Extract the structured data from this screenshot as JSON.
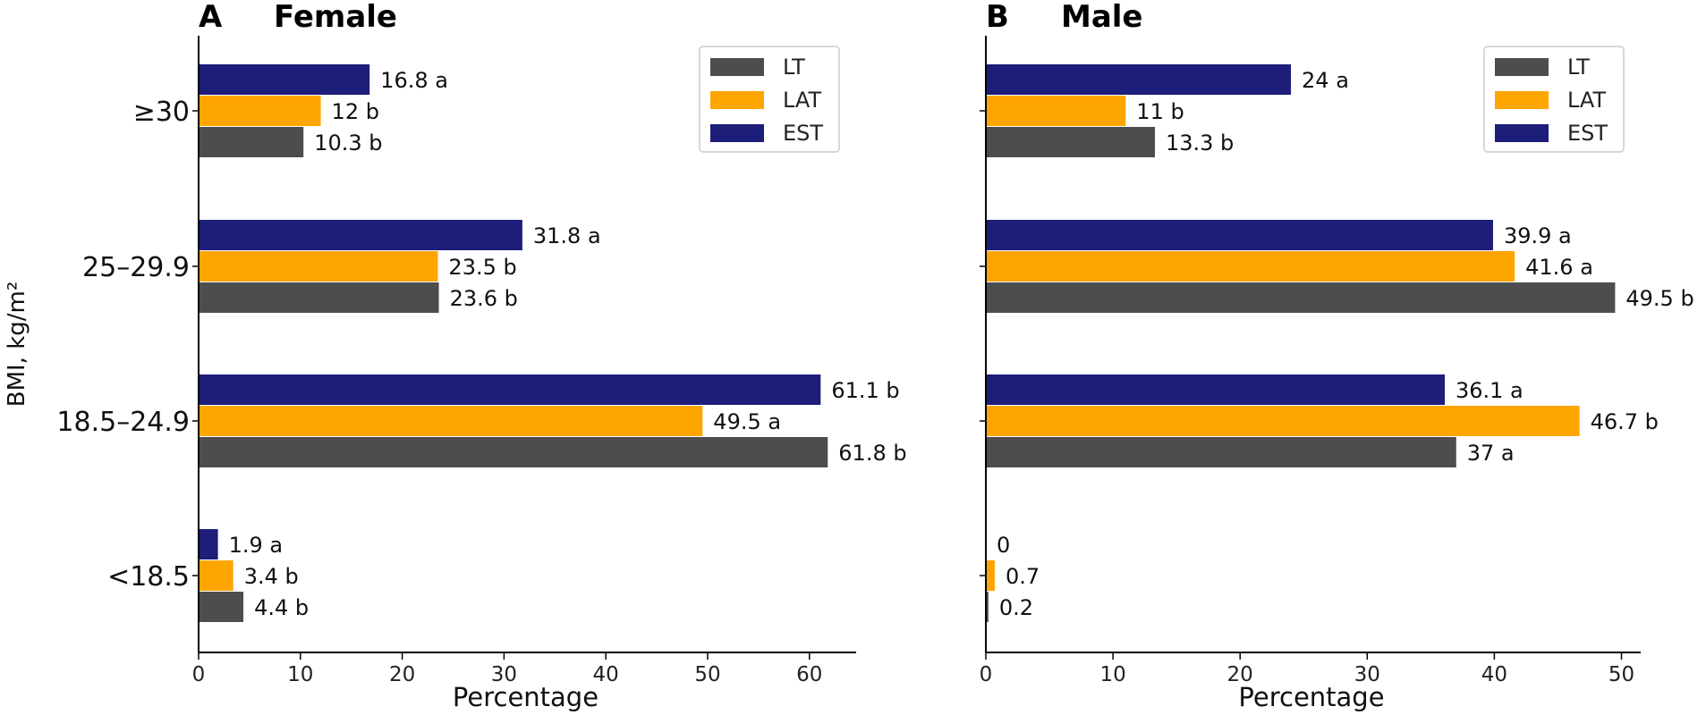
{
  "ylabel": "BMI, kg/m²",
  "colors": {
    "LT": "#4d4d4d",
    "LAT": "#ffa500",
    "EST": "#1d1d7a"
  },
  "chart_data": [
    {
      "type": "bar",
      "orientation": "horizontal",
      "panel_letter": "A",
      "title": "Female",
      "xlabel": "Percentage",
      "ylabel": "BMI, kg/m²",
      "categories": [
        "<18.5",
        "18.5–24.9",
        "25–29.9",
        "≥30"
      ],
      "xlim": [
        0,
        65
      ],
      "xticks": [
        0,
        10,
        20,
        30,
        40,
        50,
        60
      ],
      "legend_position": "top-right",
      "legend": [
        "LT",
        "LAT",
        "EST"
      ],
      "series": [
        {
          "name": "LT",
          "values": [
            4.4,
            61.8,
            23.6,
            10.3
          ],
          "labels": [
            "4.4 b",
            "61.8 b",
            "23.6 b",
            "10.3 b"
          ]
        },
        {
          "name": "LAT",
          "values": [
            3.4,
            49.5,
            23.5,
            12
          ],
          "labels": [
            "3.4 b",
            "49.5 a",
            "23.5 b",
            "12 b"
          ]
        },
        {
          "name": "EST",
          "values": [
            1.9,
            61.1,
            31.8,
            16.8
          ],
          "labels": [
            "1.9 a",
            "61.1 b",
            "31.8 a",
            "16.8 a"
          ]
        }
      ]
    },
    {
      "type": "bar",
      "orientation": "horizontal",
      "panel_letter": "B",
      "title": "Male",
      "xlabel": "Percentage",
      "ylabel": "",
      "categories": [
        "<18.5",
        "18.5–24.9",
        "25–29.9",
        "≥30"
      ],
      "xlim": [
        0,
        52
      ],
      "xticks": [
        0,
        10,
        20,
        30,
        40,
        50
      ],
      "legend_position": "top-right",
      "legend": [
        "LT",
        "LAT",
        "EST"
      ],
      "series": [
        {
          "name": "LT",
          "values": [
            0.2,
            37,
            49.5,
            13.3
          ],
          "labels": [
            "0.2",
            "37 a",
            "49.5 b",
            "13.3 b"
          ]
        },
        {
          "name": "LAT",
          "values": [
            0.7,
            46.7,
            41.6,
            11
          ],
          "labels": [
            "0.7",
            "46.7 b",
            "41.6 a",
            "11 b"
          ]
        },
        {
          "name": "EST",
          "values": [
            0,
            36.1,
            39.9,
            24
          ],
          "labels": [
            "0",
            "36.1 a",
            "39.9 a",
            "24 a"
          ]
        }
      ]
    }
  ]
}
